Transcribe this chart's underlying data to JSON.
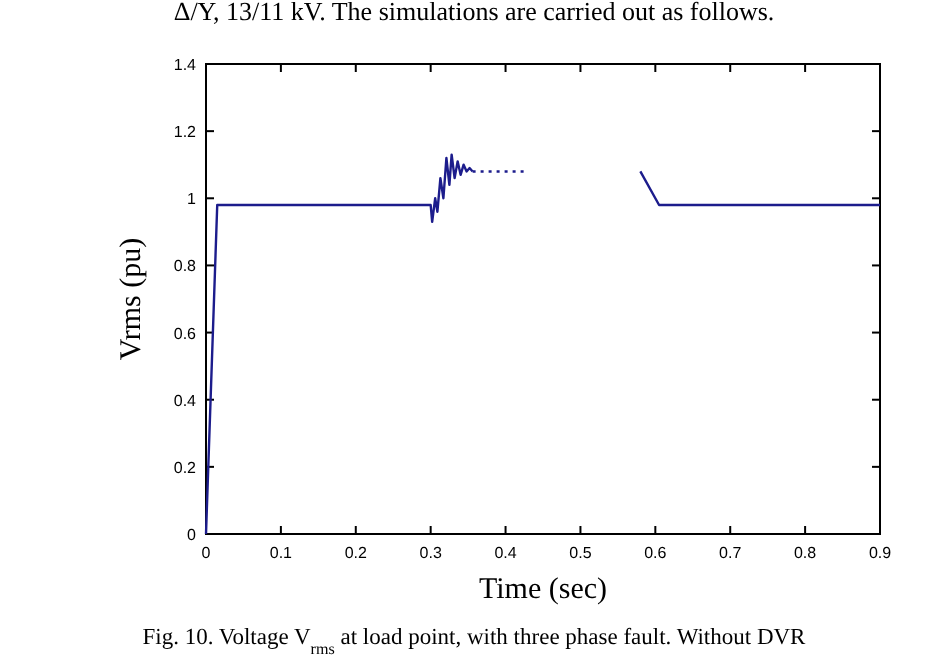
{
  "chart_data": {
    "type": "line",
    "xlabel": "Time (sec)",
    "ylabel": "Vrms (pu)",
    "annotations": [
      "Δ/Y, 13/11 kV. The simulations are carried out as follows.",
      "Fig. 10. Voltage V$_{rms}$ at load point, with three phase fault. Without DVR"
    ],
    "xlim": [
      0,
      0.9
    ],
    "xticks": [
      0,
      0.1,
      0.2,
      0.3,
      0.4,
      0.5,
      0.6,
      0.7,
      0.8,
      0.9
    ],
    "ylim": [
      0,
      1.4
    ],
    "yticks": [
      0,
      0.2,
      0.4,
      0.6,
      0.8,
      1,
      1.2,
      1.4
    ],
    "grid": false,
    "series": [
      {
        "color": "#1c1c8c",
        "line_style": "solid",
        "x": [
          0,
          0.015,
          0.3,
          0.302,
          0.306,
          0.309,
          0.313,
          0.317,
          0.321,
          0.325,
          0.328,
          0.332,
          0.336,
          0.34,
          0.344,
          0.348,
          0.352,
          0.356
        ],
        "values": [
          0,
          0.98,
          0.98,
          0.93,
          1.0,
          0.96,
          1.06,
          1.0,
          1.12,
          1.04,
          1.13,
          1.06,
          1.11,
          1.07,
          1.1,
          1.08,
          1.09,
          1.08
        ]
      },
      {
        "color": "#1c1c8c",
        "line_style": "dotted",
        "x": [
          0.356,
          0.43
        ],
        "values": [
          1.08,
          1.08
        ]
      },
      {
        "color": "#1c1c8c",
        "line_style": "solid",
        "x": [
          0.58,
          0.605,
          0.9
        ],
        "values": [
          1.08,
          0.98,
          0.98
        ]
      }
    ]
  }
}
